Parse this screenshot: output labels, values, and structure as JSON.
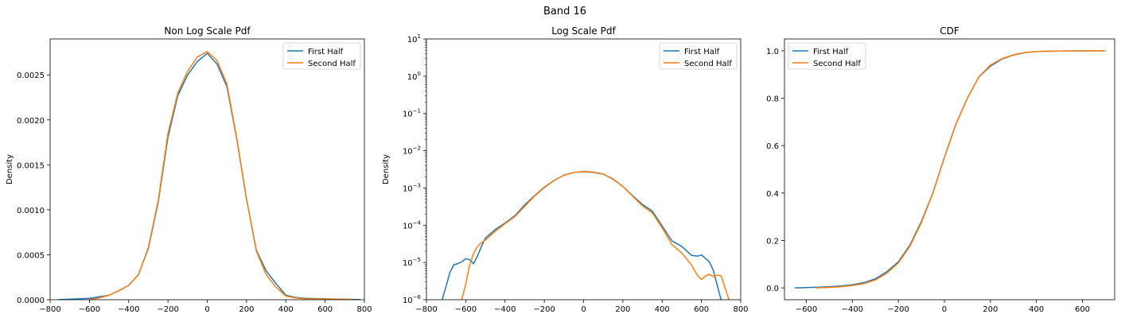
{
  "suptitle": "Band 16",
  "colors": {
    "first": "#1f77b4",
    "second": "#ff7f0e"
  },
  "chart_data": [
    {
      "type": "line",
      "title": "Non Log Scale Pdf",
      "xlabel": "",
      "ylabel": "Density",
      "xlim": [
        -800,
        800
      ],
      "ylim": [
        0,
        0.0029
      ],
      "xticks": [
        -800,
        -600,
        -400,
        -200,
        0,
        200,
        400,
        600,
        800
      ],
      "xtick_labels": [
        "−800",
        "−600",
        "−400",
        "−200",
        "0",
        "200",
        "400",
        "600",
        "800"
      ],
      "yticks": [
        0,
        0.0005,
        0.001,
        0.0015,
        0.002,
        0.0025
      ],
      "ytick_labels": [
        "0.0000",
        "0.0005",
        "0.0010",
        "0.0015",
        "0.0020",
        "0.0025"
      ],
      "legend": [
        "First Half",
        "Second Half"
      ],
      "legend_loc": "upper right",
      "series": [
        {
          "name": "First Half",
          "x": [
            -760,
            -700,
            -600,
            -500,
            -450,
            -400,
            -350,
            -300,
            -250,
            -200,
            -150,
            -100,
            -50,
            0,
            50,
            100,
            150,
            200,
            250,
            300,
            350,
            400,
            450,
            500,
            600,
            700,
            780
          ],
          "y": [
            1e-06,
            5e-06,
            1.5e-05,
            5e-05,
            0.0001,
            0.00016,
            0.00028,
            0.00057,
            0.00108,
            0.00181,
            0.00227,
            0.0025,
            0.00265,
            0.00274,
            0.00262,
            0.00237,
            0.00179,
            0.00112,
            0.00055,
            0.00032,
            0.00018,
            5e-05,
            2.5e-05,
            1.5e-05,
            1e-05,
            5e-06,
            1e-06
          ]
        },
        {
          "name": "Second Half",
          "x": [
            -600,
            -550,
            -500,
            -450,
            -400,
            -350,
            -300,
            -250,
            -200,
            -150,
            -100,
            -50,
            0,
            50,
            100,
            150,
            200,
            250,
            300,
            350,
            400,
            450,
            500,
            600,
            700,
            740
          ],
          "y": [
            1e-06,
            2e-05,
            5e-05,
            0.0001,
            0.00016,
            0.00028,
            0.00058,
            0.0011,
            0.00185,
            0.0023,
            0.00254,
            0.0027,
            0.00276,
            0.00266,
            0.0024,
            0.0018,
            0.00112,
            0.00054,
            0.00028,
            0.00014,
            4e-05,
            2e-05,
            1e-05,
            8e-06,
            4e-06,
            1e-06
          ]
        }
      ]
    },
    {
      "type": "line",
      "title": "Log Scale Pdf",
      "xlabel": "",
      "ylabel": "Density",
      "yscale": "log",
      "xlim": [
        -800,
        800
      ],
      "ylim": [
        1e-06,
        10
      ],
      "xticks": [
        -800,
        -600,
        -400,
        -200,
        0,
        200,
        400,
        600,
        800
      ],
      "xtick_labels": [
        "−800",
        "−600",
        "−400",
        "−200",
        "0",
        "200",
        "400",
        "600",
        "800"
      ],
      "yticks": [
        1e-06,
        1e-05,
        0.0001,
        0.001,
        0.01,
        0.1,
        1,
        10
      ],
      "ytick_base": [
        "10",
        "10",
        "10",
        "10",
        "10",
        "10",
        "10",
        "10"
      ],
      "ytick_exp": [
        "−6",
        "−5",
        "−4",
        "−3",
        "−2",
        "−1",
        "0",
        "1"
      ],
      "legend": [
        "First Half",
        "Second Half"
      ],
      "legend_loc": "upper right",
      "series": [
        {
          "name": "First Half",
          "x": [
            -720,
            -700,
            -680,
            -660,
            -640,
            -620,
            -600,
            -580,
            -560,
            -540,
            -520,
            -500,
            -450,
            -400,
            -350,
            -300,
            -250,
            -200,
            -150,
            -100,
            -50,
            0,
            50,
            100,
            150,
            200,
            250,
            300,
            350,
            400,
            450,
            500,
            550,
            580,
            600,
            640,
            660,
            680,
            700
          ],
          "y": [
            1e-06,
            2.3e-06,
            5.5e-06,
            8.7e-06,
            9.3e-06,
            1.04e-05,
            1.26e-05,
            1.19e-05,
            9.2e-06,
            1.5e-05,
            2.7e-05,
            4.5e-05,
            7.6e-05,
            0.000115,
            0.00018,
            0.00035,
            0.00062,
            0.00105,
            0.0016,
            0.0022,
            0.0026,
            0.00275,
            0.00262,
            0.00235,
            0.00175,
            0.0011,
            0.00062,
            0.00036,
            0.00024,
            9.5e-05,
            3.8e-05,
            2.7e-05,
            1.55e-05,
            1.48e-05,
            1.6e-05,
            1.05e-05,
            6.2e-06,
            2.5e-06,
            1e-06
          ]
        },
        {
          "name": "Second Half",
          "x": [
            -620,
            -600,
            -580,
            -560,
            -540,
            -520,
            -500,
            -450,
            -400,
            -350,
            -300,
            -250,
            -200,
            -150,
            -100,
            -50,
            0,
            50,
            100,
            150,
            200,
            250,
            300,
            350,
            400,
            450,
            500,
            550,
            580,
            600,
            620,
            640,
            660,
            680,
            700,
            720,
            740
          ],
          "y": [
            1e-06,
            2.6e-06,
            8.5e-06,
            1.75e-05,
            2.7e-05,
            3.4e-05,
            4e-05,
            6.8e-05,
            0.00011,
            0.00017,
            0.00032,
            0.0006,
            0.00102,
            0.00158,
            0.0022,
            0.0026,
            0.0028,
            0.00266,
            0.00238,
            0.0017,
            0.0011,
            0.0006,
            0.00033,
            0.000215,
            8.5e-05,
            3e-05,
            1.8e-05,
            8.5e-06,
            4.5e-06,
            3.5e-06,
            4.3e-06,
            4.8e-06,
            4.2e-06,
            4.6e-06,
            4.4e-06,
            2.1e-06,
            1e-06
          ]
        }
      ]
    },
    {
      "type": "line",
      "title": "CDF",
      "xlabel": "",
      "ylabel": "",
      "xlim": [
        -695,
        740
      ],
      "ylim": [
        -0.05,
        1.05
      ],
      "xticks": [
        -600,
        -400,
        -200,
        0,
        200,
        400,
        600
      ],
      "xtick_labels": [
        "−600",
        "−400",
        "−200",
        "0",
        "200",
        "400",
        "600"
      ],
      "yticks": [
        0,
        0.2,
        0.4,
        0.6,
        0.8,
        1.0
      ],
      "ytick_labels": [
        "0.0",
        "0.2",
        "0.4",
        "0.6",
        "0.8",
        "1.0"
      ],
      "legend": [
        "First Half",
        "Second Half"
      ],
      "legend_loc": "upper left",
      "series": [
        {
          "name": "First Half",
          "x": [
            -650,
            -600,
            -550,
            -500,
            -450,
            -400,
            -350,
            -300,
            -250,
            -200,
            -150,
            -100,
            -50,
            0,
            50,
            100,
            150,
            200,
            250,
            300,
            350,
            400,
            450,
            500,
            550,
            600,
            650,
            700
          ],
          "y": [
            0.0,
            0.001,
            0.003,
            0.005,
            0.008,
            0.013,
            0.022,
            0.038,
            0.068,
            0.11,
            0.18,
            0.28,
            0.4,
            0.55,
            0.69,
            0.8,
            0.89,
            0.935,
            0.965,
            0.982,
            0.992,
            0.997,
            0.998,
            0.999,
            0.9995,
            0.9998,
            1.0,
            1.0
          ]
        },
        {
          "name": "Second Half",
          "x": [
            -560,
            -500,
            -450,
            -400,
            -350,
            -300,
            -250,
            -200,
            -150,
            -100,
            -50,
            0,
            50,
            100,
            150,
            200,
            250,
            300,
            350,
            400,
            450,
            500,
            550,
            600,
            650,
            700
          ],
          "y": [
            0.0,
            0.002,
            0.005,
            0.01,
            0.018,
            0.033,
            0.062,
            0.105,
            0.175,
            0.275,
            0.4,
            0.55,
            0.69,
            0.8,
            0.89,
            0.94,
            0.967,
            0.983,
            0.993,
            0.997,
            0.998,
            0.999,
            0.9995,
            0.9998,
            1.0,
            1.0
          ]
        }
      ]
    }
  ]
}
